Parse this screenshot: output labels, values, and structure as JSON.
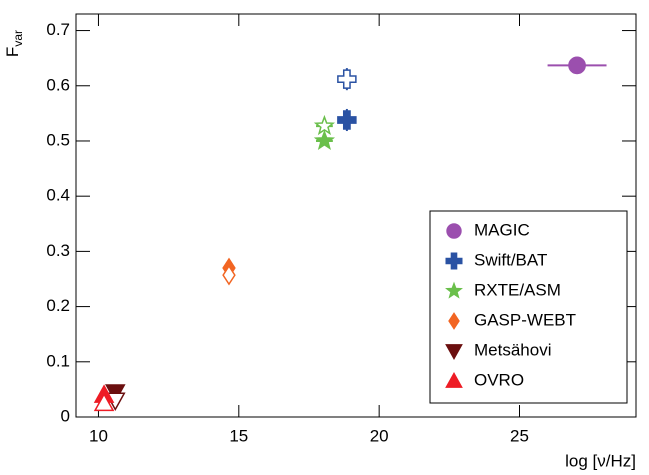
{
  "chart_data": {
    "type": "scatter",
    "xlabel": "log [ν/Hz]",
    "ylabel": {
      "text": "F",
      "subscript": "var"
    },
    "xlim": [
      9.2,
      29.15
    ],
    "ylim": [
      0,
      0.73
    ],
    "xticks": [
      10,
      15,
      20,
      25
    ],
    "yticks": [
      0,
      0.1,
      0.2,
      0.3,
      0.4,
      0.5,
      0.6,
      0.7
    ],
    "legend": "lower-right",
    "series": [
      {
        "name": "MAGIC",
        "color": "#9b4fae",
        "marker": "circle",
        "x": [
          27.05
        ],
        "values": [
          0.637
        ],
        "errors": [
          0.006
        ],
        "xerrors": [
          1.05
        ],
        "filled": [
          true
        ]
      },
      {
        "name": "Swift/BAT",
        "color": "#2a52a3",
        "marker": "cross",
        "x": [
          18.85,
          18.85
        ],
        "values": [
          0.538,
          0.612
        ],
        "errors": [
          0.02,
          0.02
        ],
        "xerrors": [
          0.2,
          0.2
        ],
        "filled": [
          true,
          false
        ]
      },
      {
        "name": "RXTE/ASM",
        "color": "#6abf4b",
        "marker": "star",
        "x": [
          18.05,
          18.05
        ],
        "values": [
          0.5,
          0.527
        ],
        "errors": [
          0.008,
          0.008
        ],
        "xerrors": [
          0.3,
          0.3
        ],
        "filled": [
          true,
          false
        ]
      },
      {
        "name": "GASP-WEBT",
        "color": "#f26522",
        "marker": "diamond",
        "x": [
          14.65,
          14.65
        ],
        "values": [
          0.27,
          0.257
        ],
        "errors": [
          0.005,
          0.005
        ],
        "filled": [
          true,
          false
        ]
      },
      {
        "name": "Metsähovi",
        "color": "#6b0f0f",
        "marker": "triangle-down",
        "x": [
          10.6,
          10.6
        ],
        "values": [
          0.045,
          0.03
        ],
        "errors": [
          0.005,
          0.015
        ],
        "filled": [
          true,
          false
        ]
      },
      {
        "name": "OVRO",
        "color": "#ee1c25",
        "marker": "triangle-up",
        "x": [
          10.2,
          10.2
        ],
        "values": [
          0.04,
          0.025
        ],
        "errors": [
          0.005,
          0.005
        ],
        "filled": [
          true,
          false
        ]
      }
    ]
  }
}
